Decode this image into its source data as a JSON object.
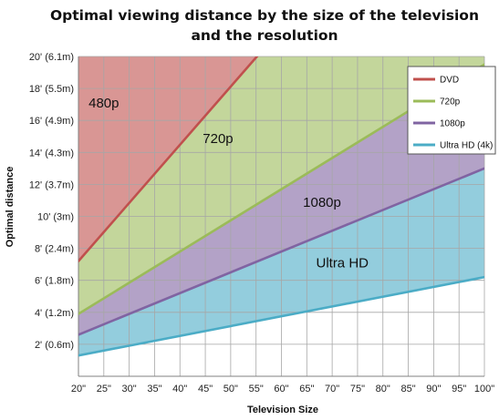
{
  "chart_data": {
    "type": "area",
    "title_lines": [
      "Optimal viewing distance by the size of the television",
      "and the resolution"
    ],
    "xlabel": "Television Size",
    "ylabel": "Optimal distance",
    "x": [
      20,
      25,
      30,
      35,
      40,
      45,
      50,
      55,
      60,
      65,
      70,
      75,
      80,
      85,
      90,
      95,
      100
    ],
    "x_tick_labels": [
      "20\"",
      "25\"",
      "30\"",
      "35\"",
      "40\"",
      "45\"",
      "50\"",
      "55\"",
      "60\"",
      "65\"",
      "70\"",
      "75\"",
      "80\"",
      "85\"",
      "90\"",
      "95\"",
      "100\""
    ],
    "xlim": [
      20,
      100
    ],
    "ylim": [
      0,
      20
    ],
    "y_ticks": [
      2,
      4,
      6,
      8,
      10,
      12,
      14,
      16,
      18,
      20
    ],
    "y_tick_labels": [
      "2' (0.6m)",
      "4' (1.2m)",
      "6' (1.8m)",
      "8' (2.4m)",
      "10' (3m)",
      "12' (3.7m)",
      "14' (4.3m)",
      "16' (4.9m)",
      "18' (5.5m)",
      "20' (6.1m)"
    ],
    "grid": true,
    "legend_position": "top-right",
    "series": [
      {
        "name": "DVD",
        "color": "#c0504d",
        "fill": "#d99694",
        "x": [
          20,
          56
        ],
        "values": [
          7.2,
          20.3
        ]
      },
      {
        "name": "720p",
        "color": "#9bbb59",
        "fill": "#c3d69b",
        "x": [
          20,
          100
        ],
        "values": [
          3.9,
          19.5
        ]
      },
      {
        "name": "1080p",
        "color": "#8064a2",
        "fill": "#b3a2c7",
        "x": [
          20,
          100
        ],
        "values": [
          2.6,
          13.0
        ]
      },
      {
        "name": "Ultra HD (4k)",
        "color": "#4bacc6",
        "fill": "#93cddd",
        "x": [
          20,
          100
        ],
        "values": [
          1.3,
          6.2
        ]
      }
    ],
    "region_labels": [
      {
        "text": "480p",
        "x": 25,
        "y": 16.8
      },
      {
        "text": "720p",
        "x": 47.5,
        "y": 14.6
      },
      {
        "text": "1080p",
        "x": 68,
        "y": 10.6
      },
      {
        "text": "Ultra HD",
        "x": 72,
        "y": 6.8
      }
    ]
  }
}
